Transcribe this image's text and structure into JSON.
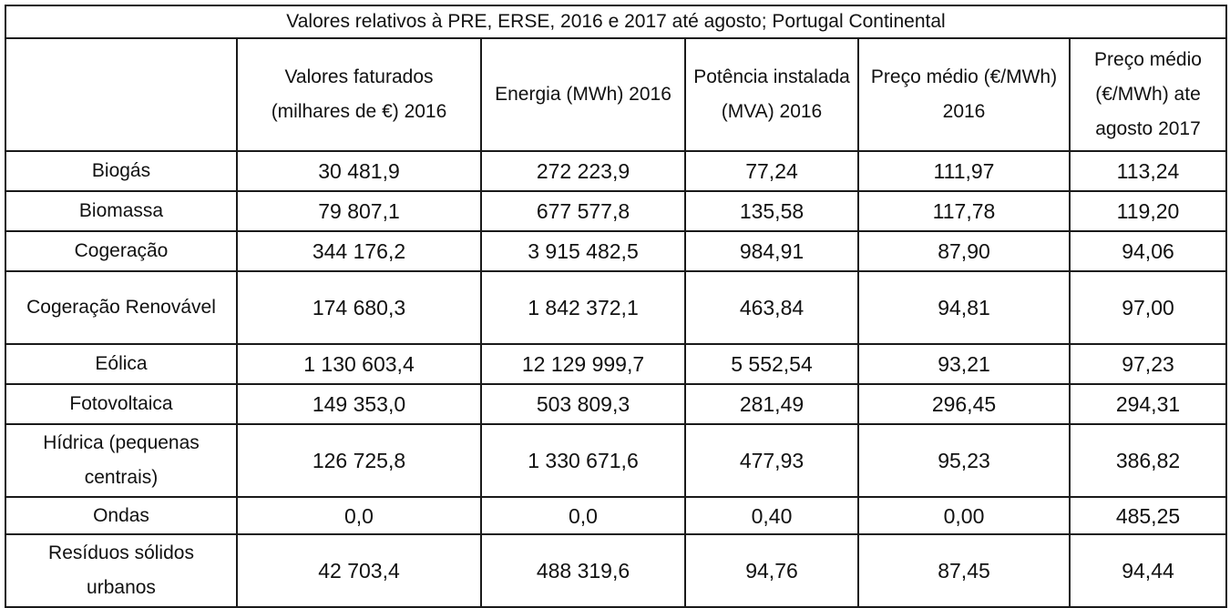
{
  "table": {
    "title": "Valores relativos à PRE, ERSE, 2016 e 2017 até agosto; Portugal Continental",
    "headers": [
      "",
      "Valores faturados (milhares de €) 2016",
      "Energia (MWh) 2016",
      "Potência instalada (MVA) 2016",
      "Preço médio (€/MWh) 2016",
      "Preço médio (€/MWh) ate agosto 2017"
    ],
    "rows": [
      [
        "Biogás",
        "30 481,9",
        "272 223,9",
        "77,24",
        "111,97",
        "113,24"
      ],
      [
        "Biomassa",
        "79 807,1",
        "677 577,8",
        "135,58",
        "117,78",
        "119,20"
      ],
      [
        "Cogeração",
        "344 176,2",
        "3 915 482,5",
        "984,91",
        "87,90",
        "94,06"
      ],
      [
        "Cogeração Renovável",
        "174 680,3",
        "1 842 372,1",
        "463,84",
        "94,81",
        "97,00"
      ],
      [
        "Eólica",
        "1 130 603,4",
        "12 129 999,7",
        "5 552,54",
        "93,21",
        "97,23"
      ],
      [
        "Fotovoltaica",
        "149 353,0",
        "503 809,3",
        "281,49",
        "296,45",
        "294,31"
      ],
      [
        "Hídrica (pequenas centrais)",
        "126 725,8",
        "1 330 671,6",
        "477,93",
        "95,23",
        "386,82"
      ],
      [
        "Ondas",
        "0,0",
        "0,0",
        "0,40",
        "0,00",
        "485,25"
      ],
      [
        "Resíduos sólidos urbanos",
        "42 703,4",
        "488 319,6",
        "94,76",
        "87,45",
        "94,44"
      ]
    ]
  }
}
